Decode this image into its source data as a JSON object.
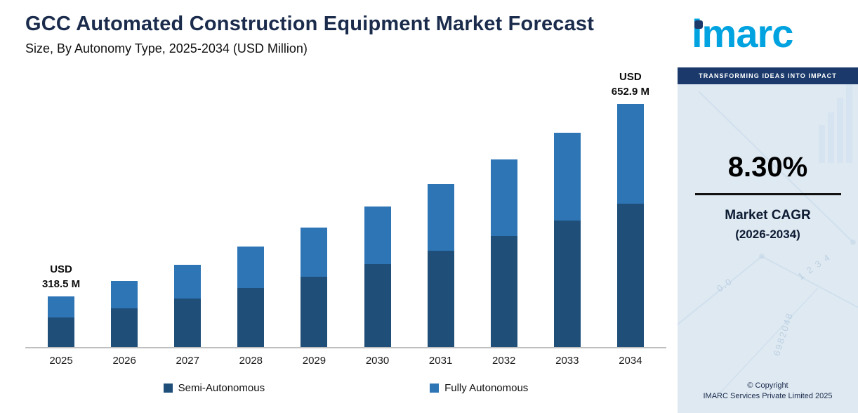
{
  "chart_data": {
    "type": "bar",
    "stacked": true,
    "title": "GCC Automated Construction Equipment Market Forecast",
    "subtitle": "Size, By Autonomy Type, 2025-2034 (USD Million)",
    "xlabel": "",
    "ylabel": "USD Million",
    "categories": [
      "2025",
      "2026",
      "2027",
      "2028",
      "2029",
      "2030",
      "2031",
      "2032",
      "2033",
      "2034"
    ],
    "series": [
      {
        "name": "Semi-Autonomous",
        "color": "#1f4e79",
        "values": [
          188.0,
          203.5,
          220.4,
          238.7,
          258.5,
          280.0,
          303.3,
          328.4,
          355.6,
          385.2
        ]
      },
      {
        "name": "Fully Autonomous",
        "color": "#2e75b6",
        "values": [
          130.5,
          141.5,
          153.2,
          165.9,
          179.7,
          194.6,
          210.7,
          228.2,
          247.2,
          267.7
        ]
      }
    ],
    "totals": [
      318.5,
      345.0,
      373.6,
      404.6,
      438.2,
      474.6,
      514.0,
      556.6,
      602.8,
      652.9
    ],
    "annotations": [
      {
        "category": "2025",
        "lines": [
          "USD",
          "318.5 M"
        ]
      },
      {
        "category": "2034",
        "lines": [
          "USD",
          "652.9 M"
        ]
      }
    ],
    "ylim": [
      230,
      670
    ],
    "grid": false,
    "legend_position": "bottom",
    "axis_color": "#bfbfbf",
    "note": "Totals for 2025 and 2034 are labeled on chart; intermediate totals estimated from bar heights at 8.30% CAGR"
  },
  "sidebar": {
    "logo_text": "imarc",
    "tagline": "TRANSFORMING IDEAS INTO IMPACT",
    "cagr_value": "8.30%",
    "cagr_label_line1": "Market CAGR",
    "cagr_label_line2": "(2026-2034)",
    "copyright_line1": "© Copyright",
    "copyright_line2": "IMARC Services Private Limited 2025",
    "brand_blue": "#00a3e0",
    "navy": "#1b3a6b",
    "panel_bg": "#dfe9f2",
    "watermark": [
      "0.0",
      "1 2 3 4",
      "6982048"
    ]
  }
}
